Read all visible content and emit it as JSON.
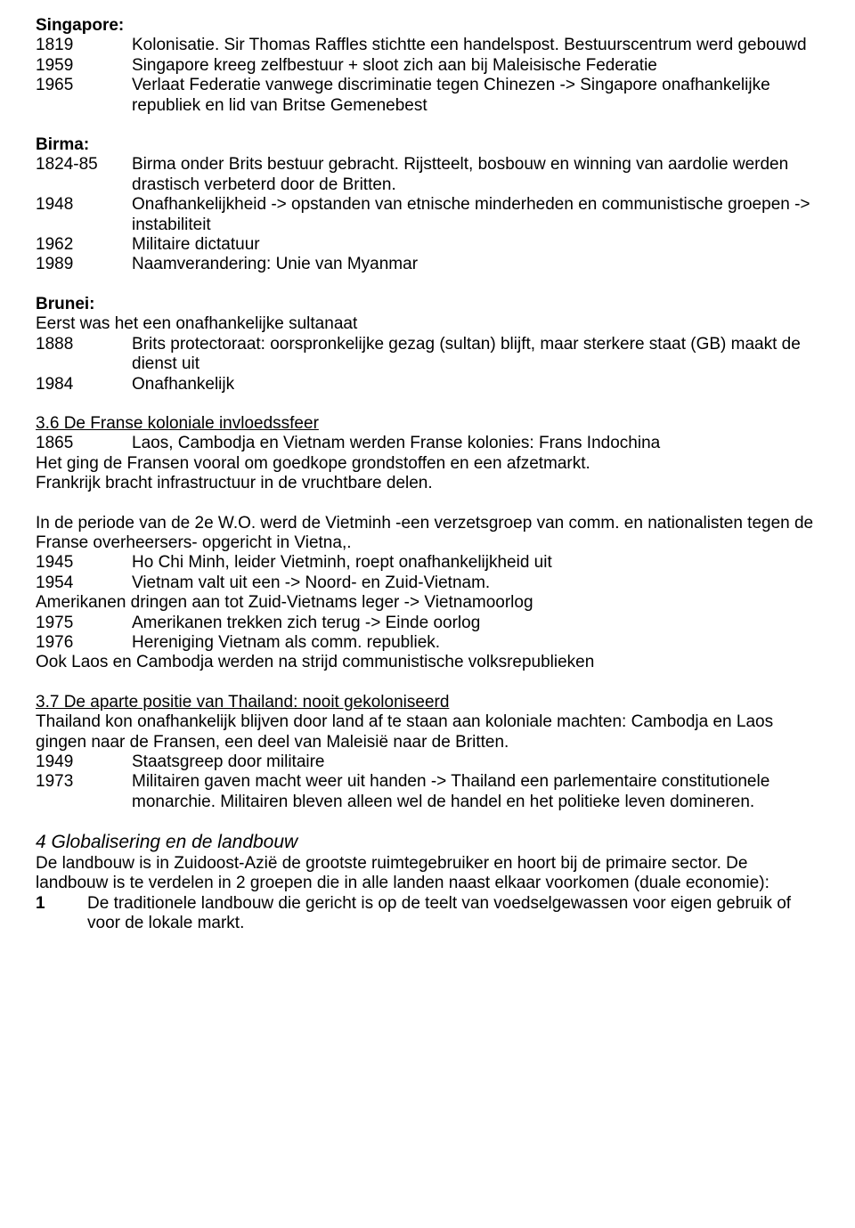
{
  "singapore": {
    "heading": "Singapore:",
    "rows": [
      {
        "year": "1819",
        "text": "Kolonisatie. Sir Thomas Raffles stichtte een handelspost. Bestuurscentrum werd gebouwd"
      },
      {
        "year": "1959",
        "text": "Singapore kreeg zelfbestuur + sloot zich aan bij Maleisische Federatie"
      },
      {
        "year": "1965",
        "text": "Verlaat Federatie vanwege discriminatie tegen Chinezen -> Singapore onafhankelijke republiek en lid van Britse Gemenebest"
      }
    ]
  },
  "birma": {
    "heading": "Birma:",
    "rows": [
      {
        "year": "1824-85",
        "text": "Birma onder Brits bestuur gebracht. Rijstteelt, bosbouw en winning van aardolie werden drastisch verbeterd door de Britten."
      },
      {
        "year": "1948",
        "text": "Onafhankelijkheid -> opstanden van etnische minderheden en communistische groepen -> instabiliteit"
      },
      {
        "year": "1962",
        "text": "Militaire dictatuur"
      },
      {
        "year": "1989",
        "text": "Naamverandering: Unie van Myanmar"
      }
    ]
  },
  "brunei": {
    "heading": "Brunei:",
    "intro": "Eerst was het een onafhankelijke sultanaat",
    "rows": [
      {
        "year": "1888",
        "text": "Brits protectoraat: oorspronkelijke gezag (sultan) blijft, maar sterkere staat (GB) maakt de dienst uit"
      },
      {
        "year": "1984",
        "text": "Onafhankelijk"
      }
    ]
  },
  "sec36": {
    "title": "3.6 De Franse koloniale invloedssfeer",
    "row1": {
      "year": "1865",
      "text": "Laos, Cambodja en Vietnam werden Franse kolonies: Frans Indochina"
    },
    "p1": "Het ging de Fransen vooral om goedkope grondstoffen en een afzetmarkt.",
    "p2": "Frankrijk bracht infrastructuur in de vruchtbare delen.",
    "p3": "In de periode van de 2e W.O. werd de Vietminh -een verzetsgroep van comm. en nationalisten tegen de Franse overheersers- opgericht in Vietna,.",
    "rows2": [
      {
        "year": "1945",
        "text": "Ho Chi Minh, leider Vietminh, roept onafhankelijkheid uit"
      },
      {
        "year": "1954",
        "text": "Vietnam valt uit een -> Noord- en Zuid-Vietnam."
      }
    ],
    "p4": "Amerikanen dringen aan tot Zuid-Vietnams leger -> Vietnamoorlog",
    "rows3": [
      {
        "year": "1975",
        "text": "Amerikanen trekken zich terug -> Einde oorlog"
      },
      {
        "year": "1976",
        "text": "Hereniging Vietnam als comm. republiek."
      }
    ],
    "p5": "Ook Laos en Cambodja werden na strijd communistische volksrepublieken"
  },
  "sec37": {
    "title": "3.7 De aparte positie van Thailand: nooit gekoloniseerd",
    "p1": "Thailand kon onafhankelijk blijven door land af te staan aan koloniale machten: Cambodja en Laos gingen naar de Fransen, een deel van Maleisië naar de Britten.",
    "rows": [
      {
        "year": "1949",
        "text": "Staatsgreep door militaire"
      },
      {
        "year": "1973",
        "text": "Militairen gaven macht weer uit handen -> Thailand een parlementaire constitutionele monarchie. Militairen bleven alleen wel de handel en het politieke leven domineren."
      }
    ]
  },
  "sec4": {
    "title": "4 Globalisering en de landbouw",
    "p1": "De landbouw is in Zuidoost-Azië de grootste ruimtegebruiker en hoort bij de primaire sector. De landbouw is te verdelen in 2 groepen die in alle landen naast elkaar voorkomen (duale economie):",
    "item1_num": "1",
    "item1_text": "De traditionele landbouw die gericht is op de teelt van voedselgewassen voor eigen gebruik of voor de lokale markt."
  }
}
